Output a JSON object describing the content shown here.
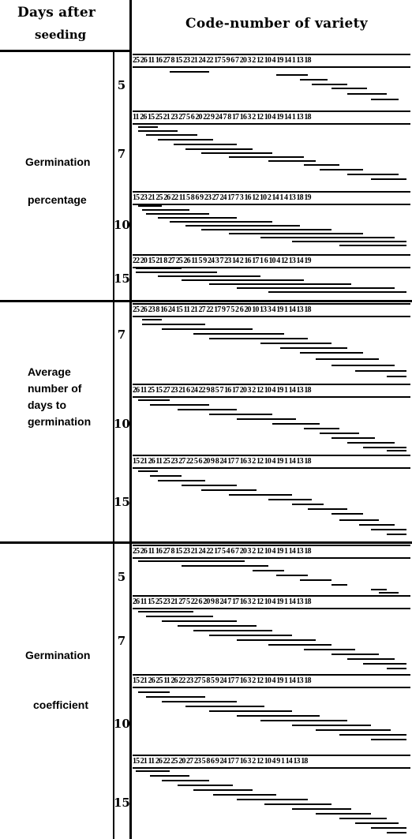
{
  "header": {
    "left_line1": "Days after",
    "left_line2": "seeding",
    "right_title": "Code-number of variety"
  },
  "groups": [
    {
      "label_lines": [
        "Germination",
        "percentage"
      ],
      "panels": [
        {
          "day": "5",
          "codes": "25 26 11 16 27 8 15 23 21 24 22 17 5 9 6 7 20 3 2 12 10 4 19 14 1 13 18"
        },
        {
          "day": "7",
          "codes": "11 26 15 25 21 23 27 5 6 20 22 9 24 7 8 17 16 3 2 12 10 4 19 14 1 13 18"
        },
        {
          "day": "10",
          "codes": "15 23 21 25 26 22 11 5 8 6 9 23 27 24 17 7 3 16 12 10 2 14 1 4 13 18 19"
        },
        {
          "day": "15",
          "codes": "22 20 15 21 8 27 25 26 11 5 9 24 3 7 23 14 2 16 17 1 6 10 4 12 13 14 19"
        }
      ]
    },
    {
      "label_lines": [
        "Average",
        "number of",
        "days to",
        "germination"
      ],
      "panels": [
        {
          "day": "7",
          "codes": "25 26 23 8 16 24 15 11 21 27 22 17 9 7 5 2 6 20 10 13 3 4 19 1 14 13 18"
        },
        {
          "day": "10",
          "codes": "26 11 25 15 27 23 21 6 24 22 9 8 5 7 16 17 20 3 2 12 10 4 19 1 14 13 18"
        },
        {
          "day": "15",
          "codes": "15 21 26 11 25 23 27 22 5 6 20 9 8 24 17 7 16 3 2 12 10 4 19 1 14 13 18"
        }
      ]
    },
    {
      "label_lines": [
        "Germination",
        "coefficient"
      ],
      "panels": [
        {
          "day": "5",
          "codes": "25 26 11 16 27 8 15 23 21 24 22 17 5 4 6 7 20 3 2 12 10 4 19 1 14 13 18"
        },
        {
          "day": "7",
          "codes": "26 11 15 25 23 21 27 5 22 6 20 9 8 24 7 17 16 3 2 12 10 4 19 1 14 13 18"
        },
        {
          "day": "10",
          "codes": "15 21 26 25 11 26 22 23 27 5 8 5 9 24 17 7 16 3 2 12 10 4 19 1 14 13 18"
        },
        {
          "day": "15",
          "codes": "15 21 11 26 22 25 20 27 23 5 8 6 9 24 17 7 16 3 2 12 10 4 9 1 14 13 18"
        }
      ]
    }
  ]
}
